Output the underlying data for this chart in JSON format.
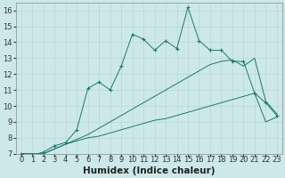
{
  "title": "",
  "xlabel": "Humidex (Indice chaleur)",
  "xlim": [
    -0.5,
    23.5
  ],
  "ylim": [
    7,
    16.5
  ],
  "xticks": [
    0,
    1,
    2,
    3,
    4,
    5,
    6,
    7,
    8,
    9,
    10,
    11,
    12,
    13,
    14,
    15,
    16,
    17,
    18,
    19,
    20,
    21,
    22,
    23
  ],
  "yticks": [
    7,
    8,
    9,
    10,
    11,
    12,
    13,
    14,
    15,
    16
  ],
  "bg_color": "#cce8e8",
  "line_color": "#1a7a6e",
  "grid_color": "#b8d8d8",
  "line1_x": [
    0,
    1,
    2,
    3,
    4,
    5,
    6,
    7,
    8,
    9,
    10,
    11,
    12,
    13,
    14,
    15,
    16,
    17,
    18,
    19,
    20,
    21,
    22,
    23
  ],
  "line1_y": [
    7,
    7,
    7,
    7.3,
    7.6,
    7.8,
    8.0,
    8.1,
    8.3,
    8.5,
    8.7,
    8.9,
    9.1,
    9.2,
    9.4,
    9.6,
    9.8,
    10.0,
    10.2,
    10.4,
    10.6,
    10.8,
    9.0,
    9.3
  ],
  "line2_x": [
    0,
    1,
    2,
    3,
    4,
    5,
    6,
    7,
    8,
    9,
    10,
    11,
    12,
    13,
    14,
    15,
    16,
    17,
    18,
    19,
    20,
    21,
    22,
    23
  ],
  "line2_y": [
    7,
    7,
    7,
    7.3,
    7.6,
    7.9,
    8.2,
    8.6,
    9.0,
    9.4,
    9.8,
    10.2,
    10.6,
    11.0,
    11.4,
    11.8,
    12.2,
    12.6,
    12.8,
    12.9,
    12.5,
    13.0,
    10.3,
    9.5
  ],
  "line3_x": [
    0,
    1,
    2,
    3,
    4,
    5,
    6,
    7,
    8,
    9,
    10,
    11,
    12,
    13,
    14,
    15,
    16,
    17,
    18,
    19,
    20,
    21,
    22,
    23
  ],
  "line3_y": [
    7,
    6.9,
    7.1,
    7.5,
    7.7,
    8.5,
    11.1,
    11.5,
    11.0,
    12.5,
    14.5,
    14.2,
    13.5,
    14.1,
    13.6,
    16.2,
    14.1,
    13.5,
    13.5,
    12.8,
    12.8,
    10.8,
    10.2,
    9.4
  ],
  "tick_fontsize": 6,
  "xlabel_fontsize": 7.5,
  "xlabel_fontweight": "bold"
}
